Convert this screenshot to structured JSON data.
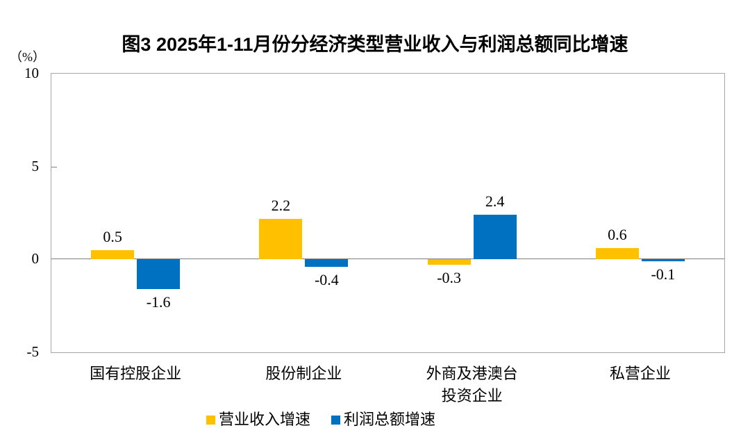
{
  "chart_data": {
    "type": "bar",
    "title": "图3 2025年1-11月份分经济类型营业收入与利润总额同比增速",
    "ylabel": "（%）",
    "categories": [
      "国有控股企业",
      "股份制企业",
      "外商及港澳台投资企业",
      "私营企业"
    ],
    "categories_display": [
      [
        "国有控股企业"
      ],
      [
        "股份制企业"
      ],
      [
        "外商及港澳台",
        "投资企业"
      ],
      [
        "私营企业"
      ]
    ],
    "series": [
      {
        "name": "营业收入增速",
        "color": "#FFC000",
        "values": [
          0.5,
          2.2,
          -0.3,
          0.6
        ]
      },
      {
        "name": "利润总额增速",
        "color": "#0070C0",
        "values": [
          -1.6,
          -0.4,
          2.4,
          -0.1
        ]
      }
    ],
    "data_labels": true,
    "ylim": [
      -5,
      10
    ],
    "yticks": [
      10,
      5,
      0,
      -5
    ],
    "grid": false,
    "legend_position": "bottom",
    "axis_color": "#a6a6a6",
    "zero_line_color": "#808080"
  }
}
